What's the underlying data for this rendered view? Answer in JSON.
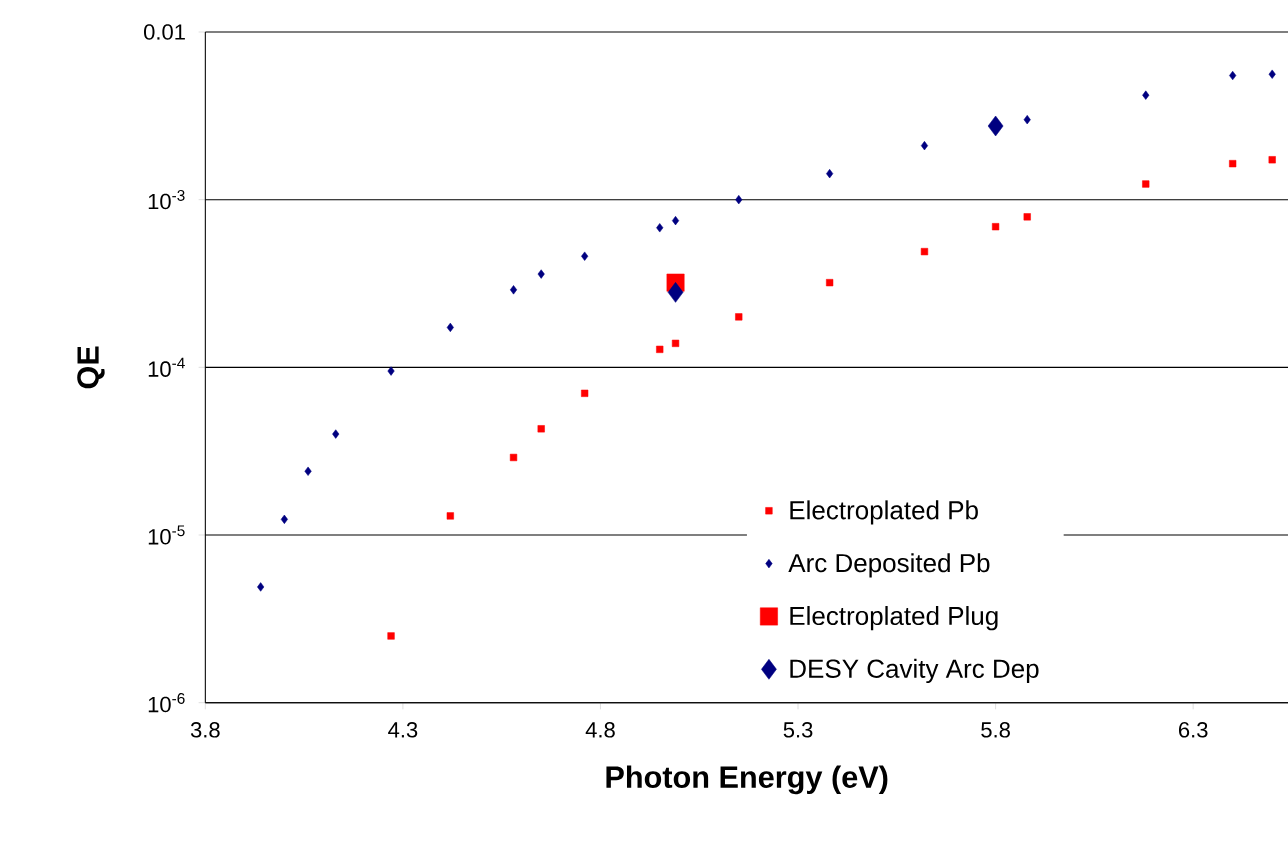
{
  "chart_data": {
    "type": "scatter",
    "xlabel": "Photon Energy (eV)",
    "ylabel": "QE",
    "log": "y",
    "grid": "y",
    "legend": "bottom right",
    "xlim": [
      3.8,
      6.54
    ],
    "xticks": [
      3.8,
      4.3,
      4.8,
      5.3,
      5.8,
      6.3
    ],
    "ylim": [
      1e-06,
      0.01
    ],
    "yticks": [
      {
        "value": 1e-06,
        "label": "10$^{-6}$"
      },
      {
        "value": 1e-05,
        "label": "10$^{-5}$"
      },
      {
        "value": 0.0001,
        "label": "10$^{-4}$"
      },
      {
        "value": 0.001,
        "label": "10$^{-3}$"
      },
      0.01
    ],
    "series": [
      {
        "name": "Electroplated Pb",
        "color": "#ff0000",
        "marker": "square",
        "x": [
          4.27,
          4.42,
          4.58,
          4.65,
          4.76,
          4.95,
          4.99,
          5.15,
          5.38,
          5.62,
          5.8,
          5.88,
          6.18,
          6.4,
          6.5
        ],
        "values": [
          2.5e-06,
          1.3e-05,
          2.9e-05,
          4.3e-05,
          7e-05,
          0.000128,
          0.000139,
          0.0002,
          0.00032,
          0.00049,
          0.00069,
          0.00079,
          0.00124,
          0.00164,
          0.00173
        ]
      },
      {
        "name": "Arc Deposited Pb",
        "color": "#000080",
        "marker": "diamond",
        "x": [
          3.94,
          4.0,
          4.06,
          4.13,
          4.27,
          4.42,
          4.58,
          4.65,
          4.76,
          4.95,
          4.99,
          5.15,
          5.38,
          5.62,
          5.88,
          6.18,
          6.4,
          6.5
        ],
        "values": [
          4.9e-06,
          1.24e-05,
          2.4e-05,
          4e-05,
          9.5e-05,
          0.000173,
          0.00029,
          0.00036,
          0.00046,
          0.00068,
          0.00075,
          0.001,
          0.00143,
          0.0021,
          0.003,
          0.0042,
          0.0055,
          0.0056
        ]
      },
      {
        "name": "Electroplated Plug",
        "color": "#ff0000",
        "marker": "square",
        "x": [
          4.99
        ],
        "values": [
          0.00032
        ]
      },
      {
        "name": "DESY Cavity Arc Dep",
        "color": "#000080",
        "marker": "diamond",
        "x": [
          4.99,
          5.8
        ],
        "values": [
          0.00028,
          0.00275
        ]
      }
    ]
  }
}
